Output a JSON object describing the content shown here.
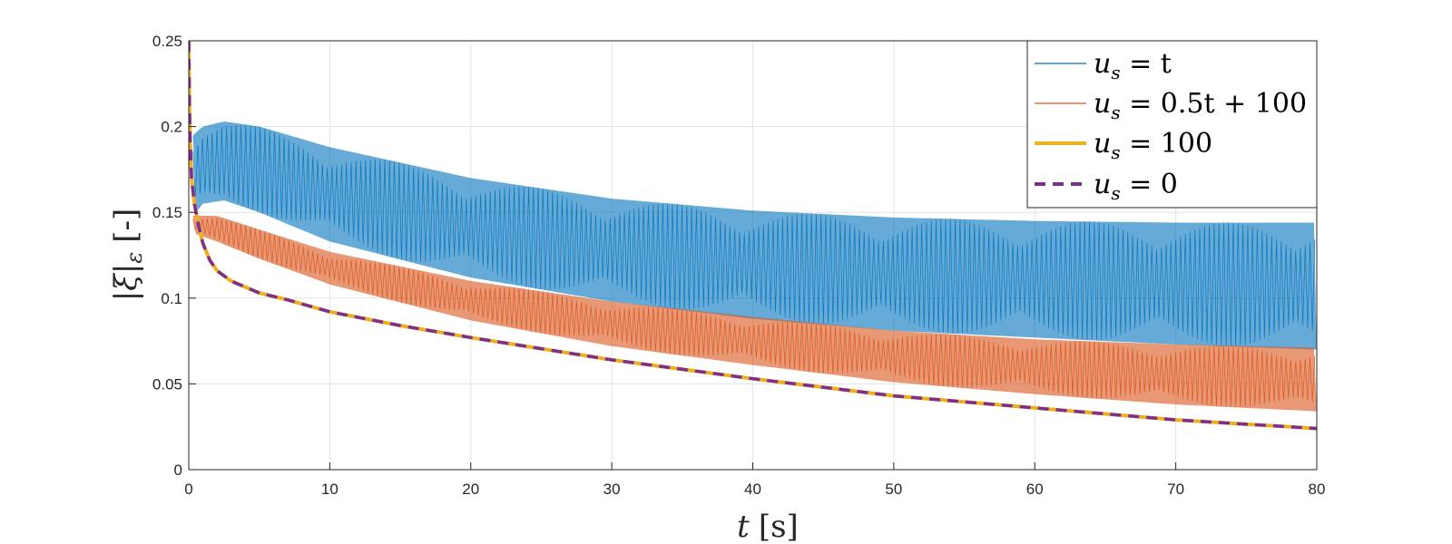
{
  "chart_data": {
    "type": "line",
    "xlabel": "t [s]",
    "ylabel": "|ξ|ε [-]",
    "xlim": [
      0,
      80
    ],
    "ylim": [
      0,
      0.25
    ],
    "xticks": [
      "0",
      "10",
      "20",
      "30",
      "40",
      "50",
      "60",
      "70",
      "80"
    ],
    "yticks": [
      "0",
      "0.05",
      "0.1",
      "0.15",
      "0.2",
      "0.25"
    ],
    "grid": true,
    "legend_position": "top-right",
    "series": [
      {
        "name": "u_s = t",
        "style": "oscillating band",
        "color": "#0072BD",
        "upper_envelope": [
          [
            0.3,
            0.195
          ],
          [
            1,
            0.2
          ],
          [
            2.5,
            0.203
          ],
          [
            5,
            0.2
          ],
          [
            10,
            0.188
          ],
          [
            20,
            0.17
          ],
          [
            30,
            0.158
          ],
          [
            40,
            0.151
          ],
          [
            50,
            0.147
          ],
          [
            60,
            0.145
          ],
          [
            70,
            0.144
          ],
          [
            80,
            0.144
          ]
        ],
        "lower_envelope": [
          [
            0.3,
            0.148
          ],
          [
            1,
            0.155
          ],
          [
            2.5,
            0.157
          ],
          [
            5,
            0.15
          ],
          [
            10,
            0.133
          ],
          [
            20,
            0.112
          ],
          [
            30,
            0.098
          ],
          [
            40,
            0.088
          ],
          [
            50,
            0.081
          ],
          [
            60,
            0.077
          ],
          [
            70,
            0.073
          ],
          [
            80,
            0.07
          ]
        ]
      },
      {
        "name": "u_s = 0.5t + 100",
        "style": "oscillating band",
        "color": "#D95319",
        "upper_envelope": [
          [
            0.3,
            0.148
          ],
          [
            2,
            0.148
          ],
          [
            5,
            0.14
          ],
          [
            10,
            0.127
          ],
          [
            20,
            0.11
          ],
          [
            30,
            0.098
          ],
          [
            40,
            0.089
          ],
          [
            50,
            0.081
          ],
          [
            60,
            0.076
          ],
          [
            70,
            0.073
          ],
          [
            80,
            0.071
          ]
        ],
        "lower_envelope": [
          [
            0.3,
            0.138
          ],
          [
            2,
            0.133
          ],
          [
            5,
            0.123
          ],
          [
            10,
            0.108
          ],
          [
            20,
            0.087
          ],
          [
            30,
            0.072
          ],
          [
            40,
            0.061
          ],
          [
            50,
            0.051
          ],
          [
            60,
            0.044
          ],
          [
            70,
            0.038
          ],
          [
            80,
            0.034
          ]
        ]
      },
      {
        "name": "u_s = 100",
        "style": "solid",
        "color": "#EDB120",
        "values": [
          [
            0,
            0.25
          ],
          [
            0.05,
            0.21
          ],
          [
            0.1,
            0.19
          ],
          [
            0.2,
            0.17
          ],
          [
            0.4,
            0.155
          ],
          [
            0.7,
            0.142
          ],
          [
            1,
            0.132
          ],
          [
            1.5,
            0.122
          ],
          [
            2,
            0.116
          ],
          [
            3,
            0.11
          ],
          [
            5,
            0.103
          ],
          [
            7,
            0.099
          ],
          [
            10,
            0.092
          ],
          [
            15,
            0.084
          ],
          [
            20,
            0.077
          ],
          [
            30,
            0.064
          ],
          [
            40,
            0.053
          ],
          [
            50,
            0.043
          ],
          [
            60,
            0.036
          ],
          [
            70,
            0.029
          ],
          [
            80,
            0.024
          ]
        ]
      },
      {
        "name": "u_s = 0",
        "style": "dashed",
        "color": "#7E2F8E",
        "values": [
          [
            0,
            0.25
          ],
          [
            0.05,
            0.21
          ],
          [
            0.1,
            0.19
          ],
          [
            0.2,
            0.17
          ],
          [
            0.4,
            0.155
          ],
          [
            0.7,
            0.142
          ],
          [
            1,
            0.132
          ],
          [
            1.5,
            0.122
          ],
          [
            2,
            0.116
          ],
          [
            3,
            0.11
          ],
          [
            5,
            0.103
          ],
          [
            7,
            0.099
          ],
          [
            10,
            0.092
          ],
          [
            15,
            0.084
          ],
          [
            20,
            0.077
          ],
          [
            30,
            0.064
          ],
          [
            40,
            0.053
          ],
          [
            50,
            0.043
          ],
          [
            60,
            0.036
          ],
          [
            70,
            0.029
          ],
          [
            80,
            0.024
          ]
        ]
      }
    ]
  },
  "legend": {
    "items": [
      {
        "prefix": "u",
        "sub": "s",
        "rest": " = t"
      },
      {
        "prefix": "u",
        "sub": "s",
        "rest": " = 0.5t + 100"
      },
      {
        "prefix": "u",
        "sub": "s",
        "rest": " = 100"
      },
      {
        "prefix": "u",
        "sub": "s",
        "rest": " = 0"
      }
    ]
  },
  "axes": {
    "xlabel_var": "t",
    "xlabel_unit": "[s]",
    "ylabel_main": "|ξ|",
    "ylabel_sub": "ε",
    "ylabel_unit": "[-]"
  }
}
